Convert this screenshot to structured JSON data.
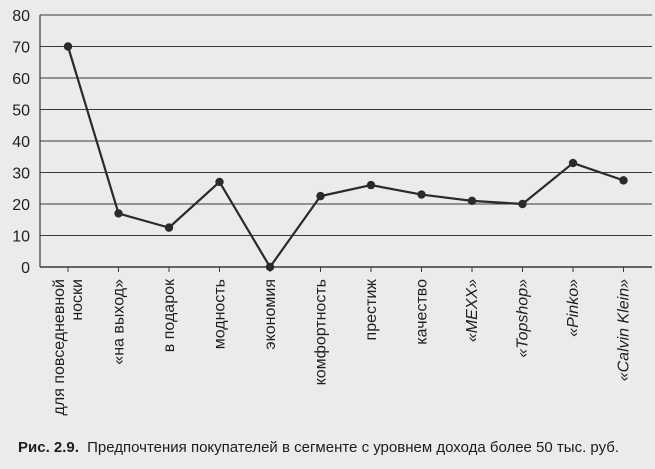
{
  "chart_data": {
    "type": "line",
    "categories": [
      "для повседневной носки",
      "«на выход»",
      "в подарок",
      "модность",
      "экономия",
      "комфортность",
      "престиж",
      "качество",
      "«MEXX»",
      "«Topshop»",
      "«Pinko»",
      "«Calvin Klein»"
    ],
    "values": [
      70,
      17,
      12.5,
      27,
      0,
      22.5,
      26,
      23,
      21,
      20,
      33,
      27.5
    ],
    "ylim": [
      0,
      80
    ],
    "yticks": [
      0,
      10,
      20,
      30,
      40,
      50,
      60,
      70,
      80
    ],
    "grid": "horizontal",
    "line_color": "#2a2a2a",
    "grid_color": "#3a3a3a"
  },
  "caption": {
    "label": "Рис. 2.9.",
    "text": "Предпочтения покупателей в сегменте с уровнем дохода более 50 тыс. руб."
  }
}
